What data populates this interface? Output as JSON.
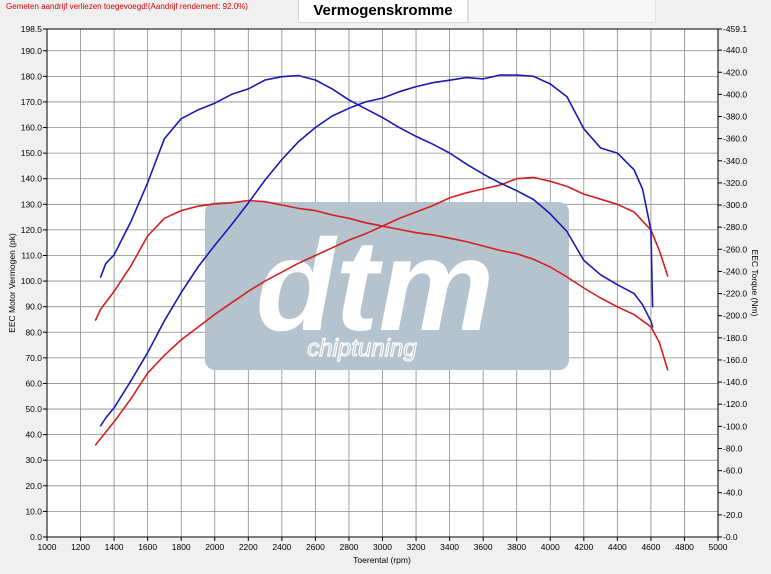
{
  "header": {
    "notice": "Gemeten aandrijf verliezen toegevoegd!(Aandrijf rendement: 92.0%)",
    "title": "Vermogenskromme"
  },
  "watermark": {
    "logo_text": "dtm",
    "tagline": "chiptuning",
    "color": "#b4c3cd"
  },
  "chart_data": {
    "type": "line",
    "title": "Vermogenskromme",
    "xlabel": "Toerental (rpm)",
    "ylabel": "EEC Motor Vermogen (pk)",
    "y2label": "EEC Torque (Nm)",
    "xlim": [
      1000,
      5000
    ],
    "ylim": [
      0,
      198.5
    ],
    "y2lim": [
      0,
      459.1
    ],
    "grid": true,
    "x_ticks": [
      "1000",
      "1200",
      "1400",
      "1600",
      "1800",
      "2000",
      "2200",
      "2400",
      "2600",
      "2800",
      "3000",
      "3200",
      "3400",
      "3600",
      "3800",
      "4000",
      "4200",
      "4400",
      "4600",
      "4800",
      "5000"
    ],
    "y_ticks": [
      "0.0",
      "10.0",
      "20.0",
      "30.0",
      "40.0",
      "50.0",
      "60.0",
      "70.0",
      "80.0",
      "90.0",
      "100.0",
      "110.0",
      "120.0",
      "130.0",
      "140.0",
      "150.0",
      "160.0",
      "170.0",
      "180.0",
      "190.0",
      "198.5"
    ],
    "y2_ticks": [
      "0.0",
      "20.0",
      "40.0",
      "60.0",
      "80.0",
      "100.0",
      "120.0",
      "140.0",
      "160.0",
      "180.0",
      "200.0",
      "220.0",
      "240.0",
      "260.0",
      "280.0",
      "300.0",
      "320.0",
      "340.0",
      "360.0",
      "380.0",
      "400.0",
      "420.0",
      "440.0",
      "459.1"
    ],
    "series": [
      {
        "color": "#d42020",
        "axis": "left",
        "x": [
          1290,
          1320,
          1400,
          1500,
          1600,
          1700,
          1800,
          1900,
          2000,
          2100,
          2200,
          2300,
          2400,
          2500,
          2600,
          2700,
          2800,
          2900,
          3000,
          3100,
          3200,
          3300,
          3400,
          3500,
          3600,
          3700,
          3800,
          3900,
          4000,
          4100,
          4200,
          4300,
          4400,
          4500,
          4600,
          4650,
          4700
        ],
        "y": [
          36.0,
          38.5,
          45.0,
          54.0,
          64.0,
          71.0,
          77.0,
          82.0,
          87.0,
          91.5,
          96.0,
          100.0,
          103.5,
          107.0,
          110.0,
          113.0,
          116.0,
          118.5,
          121.5,
          124.5,
          127.0,
          129.5,
          132.5,
          134.5,
          136.0,
          137.5,
          140.0,
          140.5,
          139.0,
          137.0,
          134.0,
          132.0,
          130.0,
          127.0,
          120.0,
          112.0,
          102.0
        ]
      },
      {
        "color": "#d42020",
        "axis": "right",
        "x": [
          1290,
          1320,
          1400,
          1500,
          1600,
          1700,
          1800,
          1900,
          2000,
          2100,
          2200,
          2300,
          2400,
          2500,
          2600,
          2700,
          2800,
          2900,
          3000,
          3100,
          3200,
          3300,
          3400,
          3500,
          3600,
          3700,
          3800,
          3900,
          4000,
          4100,
          4200,
          4300,
          4400,
          4500,
          4600,
          4650,
          4700
        ],
        "y": [
          196.0,
          206.0,
          222.0,
          245.0,
          272.0,
          288.0,
          295.0,
          299.0,
          301.0,
          302.0,
          304.0,
          303.0,
          300.0,
          297.0,
          295.0,
          291.0,
          288.0,
          284.0,
          281.0,
          278.0,
          275.0,
          273.0,
          270.0,
          267.0,
          263.0,
          259.0,
          256.0,
          251.0,
          244.0,
          235.0,
          225.0,
          216.0,
          208.0,
          201.0,
          190.0,
          176.0,
          151.0
        ]
      },
      {
        "color": "#1a1ab4",
        "axis": "left",
        "x": [
          1320,
          1350,
          1400,
          1500,
          1600,
          1700,
          1800,
          1900,
          2000,
          2100,
          2200,
          2300,
          2400,
          2500,
          2600,
          2700,
          2800,
          2900,
          3000,
          3100,
          3200,
          3300,
          3400,
          3500,
          3600,
          3700,
          3800,
          3900,
          4000,
          4100,
          4200,
          4300,
          4400,
          4500,
          4550,
          4600,
          4610
        ],
        "y": [
          43.5,
          46.5,
          50.5,
          61.0,
          72.0,
          84.5,
          95.5,
          105.5,
          114.0,
          122.0,
          130.5,
          139.5,
          147.5,
          154.5,
          160.0,
          164.5,
          167.5,
          170.0,
          171.5,
          174.0,
          176.0,
          177.5,
          178.5,
          179.5,
          179.0,
          180.5,
          180.5,
          180.0,
          177.0,
          172.0,
          159.5,
          152.0,
          150.0,
          143.5,
          136.0,
          120.0,
          90.0
        ]
      },
      {
        "color": "#1a1ab4",
        "axis": "right",
        "x": [
          1320,
          1350,
          1400,
          1500,
          1600,
          1700,
          1800,
          1900,
          2000,
          2100,
          2200,
          2300,
          2400,
          2500,
          2600,
          2700,
          2800,
          2900,
          3000,
          3100,
          3200,
          3300,
          3400,
          3500,
          3600,
          3700,
          3800,
          3900,
          4000,
          4100,
          4200,
          4300,
          4400,
          4500,
          4550,
          4600,
          4610
        ],
        "y": [
          235.0,
          247.0,
          255.0,
          285.0,
          320.0,
          360.0,
          378.0,
          386.0,
          392.0,
          400.0,
          405.0,
          413.0,
          416.0,
          417.0,
          413.0,
          405.0,
          395.0,
          387.0,
          379.0,
          370.0,
          362.0,
          355.0,
          347.0,
          337.0,
          328.0,
          320.0,
          313.0,
          305.0,
          292.0,
          276.0,
          250.0,
          237.0,
          228.0,
          220.0,
          210.0,
          195.0,
          190.0
        ]
      }
    ]
  }
}
